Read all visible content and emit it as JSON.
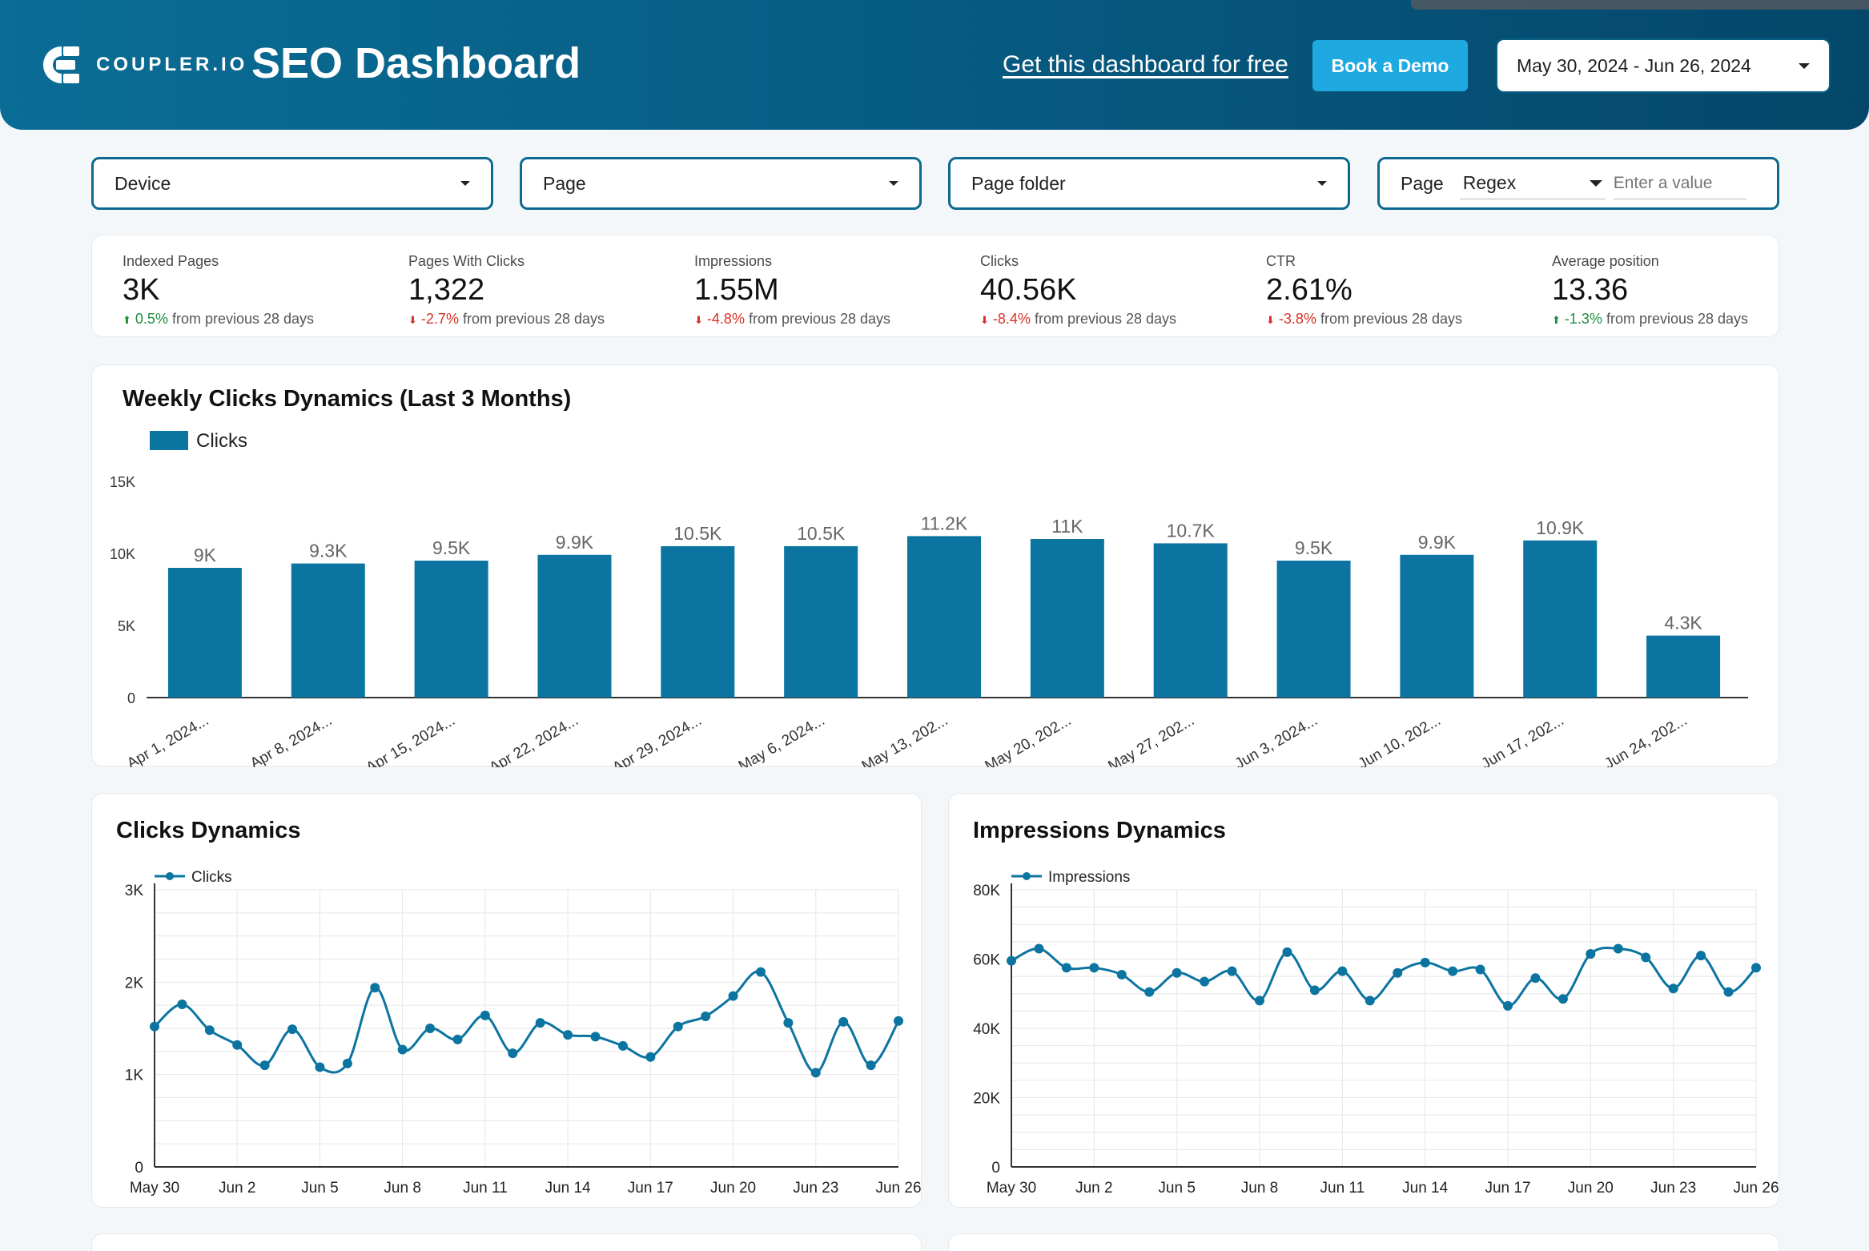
{
  "header": {
    "brand": "COUPLER.IO",
    "title": "SEO Dashboard",
    "get_link": "Get this dashboard for free",
    "demo_button": "Book a Demo",
    "date_range": "May 30, 2024 - Jun 26, 2024"
  },
  "filters": {
    "device": "Device",
    "page": "Page",
    "page_folder": "Page folder",
    "regex_label": "Page",
    "regex_mode": "Regex",
    "regex_placeholder": "Enter a value"
  },
  "kpis": [
    {
      "label": "Indexed Pages",
      "value": "3K",
      "delta": "0.5%",
      "direction": "up",
      "suffix": "from previous 28 days"
    },
    {
      "label": "Pages With Clicks",
      "value": "1,322",
      "delta": "-2.7%",
      "direction": "down",
      "suffix": "from previous 28 days"
    },
    {
      "label": "Impressions",
      "value": "1.55M",
      "delta": "-4.8%",
      "direction": "down",
      "suffix": "from previous 28 days"
    },
    {
      "label": "Clicks",
      "value": "40.56K",
      "delta": "-8.4%",
      "direction": "down",
      "suffix": "from previous 28 days"
    },
    {
      "label": "CTR",
      "value": "2.61%",
      "delta": "-3.8%",
      "direction": "down",
      "suffix": "from previous 28 days"
    },
    {
      "label": "Average position",
      "value": "13.36",
      "delta": "-1.3%",
      "direction": "up",
      "suffix": "from previous 28 days"
    }
  ],
  "colors": {
    "accent": "#0b74a0",
    "up": "#1e8e3e",
    "down": "#d93025"
  },
  "chart_data": [
    {
      "type": "bar",
      "title": "Weekly Clicks Dynamics (Last 3 Months)",
      "legend": "Clicks",
      "categories": [
        "Apr 1, 2024...",
        "Apr 8, 2024...",
        "Apr 15, 2024...",
        "Apr 22, 2024...",
        "Apr 29, 2024...",
        "May 6, 2024...",
        "May 13, 202...",
        "May 20, 202...",
        "May 27, 202...",
        "Jun 3, 2024...",
        "Jun 10, 202...",
        "Jun 17, 202...",
        "Jun 24, 202..."
      ],
      "values": [
        9000,
        9300,
        9500,
        9900,
        10500,
        10500,
        11200,
        11000,
        10700,
        9500,
        9900,
        10900,
        4300
      ],
      "labels": [
        "9K",
        "9.3K",
        "9.5K",
        "9.9K",
        "10.5K",
        "10.5K",
        "11.2K",
        "11K",
        "10.7K",
        "9.5K",
        "9.9K",
        "10.9K",
        "4.3K"
      ],
      "yticks": [
        0,
        5000,
        10000,
        15000
      ],
      "ytick_labels": [
        "0",
        "5K",
        "10K",
        "15K"
      ],
      "ylim": [
        0,
        15000
      ]
    },
    {
      "type": "line",
      "title": "Clicks Dynamics",
      "legend": "Clicks",
      "x_ticks": [
        "May 30",
        "Jun 2",
        "Jun 5",
        "Jun 8",
        "Jun 11",
        "Jun 14",
        "Jun 17",
        "Jun 20",
        "Jun 23",
        "Jun 26"
      ],
      "values": [
        1520,
        1760,
        1480,
        1320,
        1100,
        1490,
        1080,
        1120,
        1940,
        1270,
        1500,
        1380,
        1640,
        1230,
        1560,
        1430,
        1410,
        1310,
        1190,
        1520,
        1630,
        1850,
        2110,
        1560,
        1020,
        1570,
        1100,
        1580
      ],
      "yticks": [
        0,
        1000,
        2000,
        3000
      ],
      "ytick_labels": [
        "0",
        "1K",
        "2K",
        "3K"
      ],
      "ylim": [
        0,
        3000
      ]
    },
    {
      "type": "line",
      "title": "Impressions Dynamics",
      "legend": "Impressions",
      "x_ticks": [
        "May 30",
        "Jun 2",
        "Jun 5",
        "Jun 8",
        "Jun 11",
        "Jun 14",
        "Jun 17",
        "Jun 20",
        "Jun 23",
        "Jun 26"
      ],
      "values": [
        59500,
        63000,
        57500,
        57500,
        55500,
        50500,
        56000,
        53500,
        56500,
        48000,
        62000,
        51000,
        56500,
        48000,
        56000,
        59000,
        56500,
        57000,
        46500,
        54500,
        48500,
        61500,
        63000,
        60500,
        51500,
        61000,
        50500,
        57500
      ],
      "yticks": [
        0,
        20000,
        40000,
        60000,
        80000
      ],
      "ytick_labels": [
        "0",
        "20K",
        "40K",
        "60K",
        "80K"
      ],
      "ylim": [
        0,
        80000
      ]
    }
  ]
}
